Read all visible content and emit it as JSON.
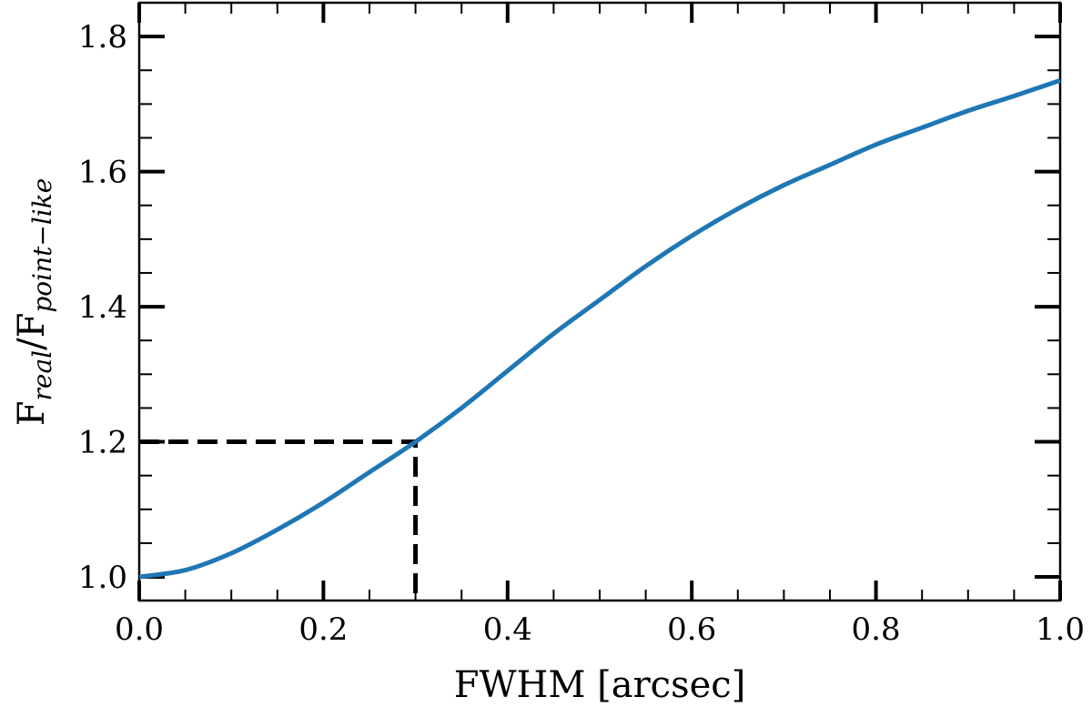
{
  "chart_data": {
    "type": "line",
    "xlabel": "FWHM [arcsec]",
    "ylabel": {
      "base1": "F",
      "sub1": "real",
      "slash": "/",
      "base2": "F",
      "sub2": "point−like"
    },
    "xlim": [
      0.0,
      1.0
    ],
    "ylim": [
      0.965,
      1.85
    ],
    "x_ticks": [
      "0.0",
      "0.2",
      "0.4",
      "0.6",
      "0.8",
      "1.0"
    ],
    "y_ticks": [
      "1.0",
      "1.2",
      "1.4",
      "1.6",
      "1.8"
    ],
    "grid": false,
    "series": [
      {
        "color": "#1f77b4",
        "x": [
          0.0,
          0.05,
          0.1,
          0.15,
          0.2,
          0.25,
          0.3,
          0.35,
          0.4,
          0.45,
          0.5,
          0.55,
          0.6,
          0.65,
          0.7,
          0.75,
          0.8,
          0.85,
          0.9,
          0.95,
          1.0
        ],
        "y": [
          1.0,
          1.01,
          1.035,
          1.07,
          1.11,
          1.155,
          1.2,
          1.25,
          1.305,
          1.36,
          1.41,
          1.46,
          1.505,
          1.545,
          1.58,
          1.61,
          1.64,
          1.665,
          1.69,
          1.712,
          1.735
        ]
      }
    ],
    "annotations": [
      {
        "style": "dashed",
        "color": "#000000",
        "x": [
          0.0,
          0.3,
          0.3
        ],
        "y": [
          1.2,
          1.2,
          0.965
        ]
      }
    ]
  }
}
